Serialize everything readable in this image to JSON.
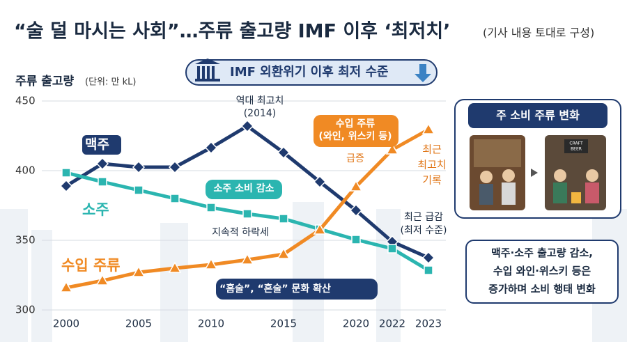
{
  "chart_data": {
    "type": "line",
    "title": "“술 덜 마시는 사회”…주류 출고량 IMF 이후 ‘최저치’",
    "subtitle": "(기사 내용 토대로 구성)",
    "banner": "IMF 외환위기 이후 최저 수준",
    "y_label": "주류 출고량",
    "y_unit": "(단위: 만 kL)",
    "categories": [
      "2000",
      null,
      "2005",
      null,
      "2010",
      null,
      "2015",
      null,
      "2020",
      "2022",
      "2023"
    ],
    "ylim": [
      300,
      450
    ],
    "yticks": [
      300,
      350,
      400,
      450
    ],
    "grid": true,
    "series": [
      {
        "name": "맥주",
        "color": "#1f3a6e",
        "marker": "diamond",
        "values": [
          389,
          405,
          402.5,
          402.5,
          416.5,
          432,
          413,
          392,
          371.5,
          349,
          337.5
        ]
      },
      {
        "name": "소주",
        "color": "#2bb5b0",
        "marker": "square",
        "values": [
          398.5,
          392,
          386,
          380,
          373.5,
          369,
          365.5,
          358,
          350.5,
          344,
          328.5
        ]
      },
      {
        "name": "수입 주류",
        "color": "#f08a24",
        "marker": "triangle",
        "values": [
          316,
          321,
          327,
          330,
          332.5,
          336,
          340,
          357.5,
          388.5,
          415,
          429.5
        ]
      }
    ],
    "annotations": [
      {
        "lines": [
          "역대 최고치",
          "(2014)"
        ]
      },
      {
        "lines": [
          "수입 주류",
          "(와인, 위스키 등)"
        ]
      },
      {
        "lines": [
          "급증"
        ]
      },
      {
        "lines": [
          "최근",
          "최고치",
          "기록"
        ]
      },
      {
        "lines": [
          "소주 소비 감소"
        ]
      },
      {
        "lines": [
          "지속적 하락세"
        ]
      },
      {
        "lines": [
          "최근 급감",
          "(최저 수준)"
        ]
      },
      {
        "lines": [
          "“홈술”, “혼술” 문화 확산"
        ]
      }
    ]
  },
  "panel": {
    "title": "주 소비 주류 변화",
    "sign": [
      "CRAFT",
      "BEER"
    ],
    "note": [
      "맥주·소주 출고량 감소,",
      "수입 와인·위스키 등은",
      "증가하며 소비 행태 변화"
    ]
  }
}
